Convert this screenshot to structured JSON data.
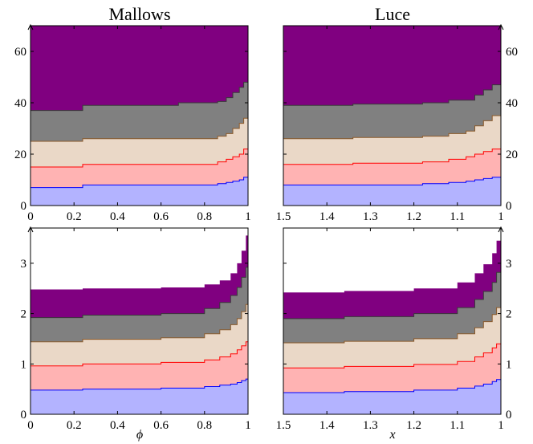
{
  "titles": {
    "left": "Mallows",
    "right": "Luce"
  },
  "xlabels": {
    "left": "ϕ",
    "right": "x"
  },
  "colors": {
    "layer1_fill": "#b3b3ff",
    "layer1_line": "#0000ff",
    "layer2_fill": "#ffb3b3",
    "layer2_line": "#ff0000",
    "layer3_fill": "#ead8c7",
    "layer3_line": "#8b5a2b",
    "layer4_fill": "#808080",
    "layer4_line": "#3a3a3a",
    "layer5_fill": "#800080",
    "layer5_line": "#000000"
  },
  "chart_data": [
    {
      "type": "area",
      "title": "Mallows",
      "xlabel": "",
      "xlim": [
        0,
        1
      ],
      "ylim": [
        0,
        70
      ],
      "xticks": [
        "0",
        "0.2",
        "0.4",
        "0.6",
        "0.8",
        "1"
      ],
      "yticks": [
        "0",
        "20",
        "40",
        "60"
      ],
      "yaxis_side": "left",
      "stacked": true,
      "x": [
        0,
        0.24,
        0.68,
        0.86,
        0.9,
        0.93,
        0.96,
        0.98,
        1.0
      ],
      "boundaries": [
        [
          7,
          8,
          8,
          8.5,
          9,
          9.5,
          10,
          11,
          12
        ],
        [
          15,
          16,
          16,
          17,
          18,
          19,
          20,
          22,
          24
        ],
        [
          25,
          26,
          26,
          27,
          28,
          30,
          32,
          34,
          36
        ],
        [
          37,
          39,
          40,
          40.5,
          42,
          44,
          46,
          48,
          49
        ],
        [
          70,
          70,
          70,
          70,
          70,
          70,
          70,
          70,
          70
        ]
      ]
    },
    {
      "type": "area",
      "title": "Luce",
      "xlabel": "",
      "xlim": [
        1.5,
        1
      ],
      "ylim": [
        0,
        70
      ],
      "xticks": [
        "1.5",
        "1.4",
        "1.3",
        "1.2",
        "1.1",
        "1"
      ],
      "yticks": [
        "0",
        "20",
        "40",
        "60"
      ],
      "yaxis_side": "right",
      "stacked": true,
      "x": [
        1.5,
        1.34,
        1.18,
        1.12,
        1.08,
        1.06,
        1.04,
        1.02,
        1.0
      ],
      "boundaries": [
        [
          8,
          8,
          8.5,
          9,
          9.5,
          10,
          10.5,
          11,
          12
        ],
        [
          16,
          16.5,
          17,
          18,
          19,
          20,
          21,
          22,
          24
        ],
        [
          26,
          26.5,
          27,
          28,
          29,
          31,
          33,
          35,
          36
        ],
        [
          39,
          39.5,
          40,
          41,
          41,
          43,
          45,
          47,
          49
        ],
        [
          70,
          70,
          70,
          70,
          70,
          70,
          70,
          70,
          70
        ]
      ]
    },
    {
      "type": "area",
      "title": "",
      "xlabel": "ϕ",
      "xlim": [
        0,
        1
      ],
      "ylim": [
        0,
        3.7
      ],
      "xticks": [
        "0",
        "0.2",
        "0.4",
        "0.6",
        "0.8",
        "1"
      ],
      "yticks": [
        "0",
        "1",
        "2",
        "3"
      ],
      "yaxis_side": "left",
      "stacked": true,
      "x": [
        0,
        0.24,
        0.6,
        0.8,
        0.87,
        0.92,
        0.95,
        0.97,
        0.99,
        1.0
      ],
      "boundaries": [
        [
          0.48,
          0.5,
          0.52,
          0.55,
          0.58,
          0.6,
          0.63,
          0.67,
          0.7,
          0.73
        ],
        [
          0.96,
          1.0,
          1.03,
          1.08,
          1.14,
          1.2,
          1.28,
          1.36,
          1.44,
          1.49
        ],
        [
          1.44,
          1.49,
          1.52,
          1.6,
          1.68,
          1.78,
          1.9,
          2.04,
          2.18,
          2.23
        ],
        [
          1.92,
          1.97,
          2.0,
          2.1,
          2.22,
          2.36,
          2.52,
          2.72,
          2.92,
          2.97
        ],
        [
          2.48,
          2.5,
          2.52,
          2.58,
          2.66,
          2.8,
          3.0,
          3.25,
          3.55,
          3.65
        ]
      ]
    },
    {
      "type": "area",
      "title": "",
      "xlabel": "x",
      "xlim": [
        1.5,
        1
      ],
      "ylim": [
        0,
        3.7
      ],
      "xticks": [
        "1.5",
        "1.4",
        "1.3",
        "1.2",
        "1.1",
        "1"
      ],
      "yticks": [
        "0",
        "1",
        "2",
        "3"
      ],
      "yaxis_side": "right",
      "stacked": true,
      "x": [
        1.5,
        1.36,
        1.2,
        1.1,
        1.06,
        1.04,
        1.02,
        1.01,
        1.0
      ],
      "boundaries": [
        [
          0.43,
          0.45,
          0.48,
          0.52,
          0.56,
          0.6,
          0.65,
          0.69,
          0.72
        ],
        [
          0.92,
          0.95,
          0.99,
          1.05,
          1.14,
          1.22,
          1.32,
          1.4,
          1.45
        ],
        [
          1.42,
          1.45,
          1.5,
          1.6,
          1.72,
          1.84,
          1.98,
          2.12,
          2.18
        ],
        [
          1.9,
          1.94,
          2.0,
          2.12,
          2.28,
          2.44,
          2.62,
          2.82,
          2.9
        ],
        [
          2.42,
          2.45,
          2.5,
          2.62,
          2.8,
          2.98,
          3.2,
          3.45,
          3.62
        ]
      ]
    }
  ]
}
